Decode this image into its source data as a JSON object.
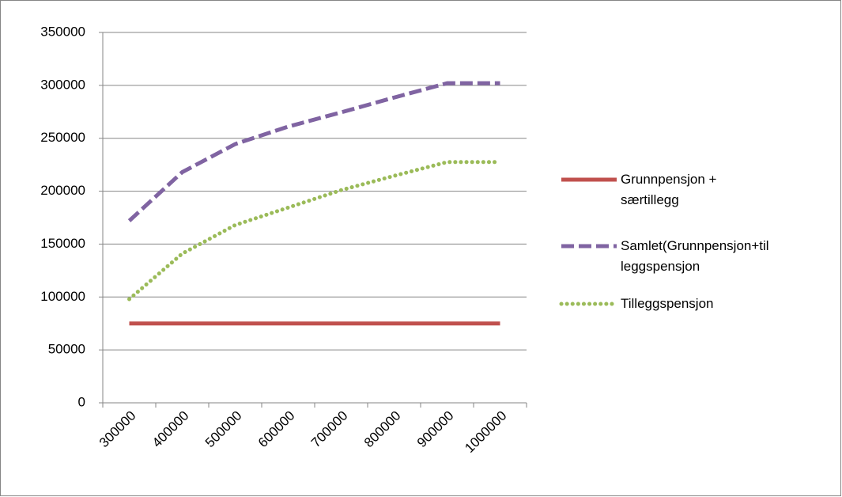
{
  "chart_data": {
    "type": "line",
    "categories": [
      300000,
      400000,
      500000,
      600000,
      700000,
      800000,
      900000,
      1000000
    ],
    "series": [
      {
        "name": "Grunnpensjon + særtillegg",
        "color": "#c0504d",
        "style": "solid",
        "values": [
          75000,
          75000,
          75000,
          75000,
          75000,
          75000,
          75000,
          75000
        ]
      },
      {
        "name": "Samlet(Grunnpensjon+tilleggspensjon",
        "color": "#8064a2",
        "style": "dashed",
        "values": [
          172000,
          218000,
          244500,
          261000,
          274500,
          288500,
          302000,
          302000
        ]
      },
      {
        "name": "Tilleggspensjon",
        "color": "#9bbb59",
        "style": "dotted",
        "values": [
          98000,
          141000,
          168000,
          184500,
          201000,
          214500,
          227500,
          227500
        ]
      }
    ],
    "ylim": [
      0,
      350000
    ],
    "yticks": [
      0,
      50000,
      100000,
      150000,
      200000,
      250000,
      300000,
      350000
    ],
    "grid": true,
    "legend": "right"
  }
}
